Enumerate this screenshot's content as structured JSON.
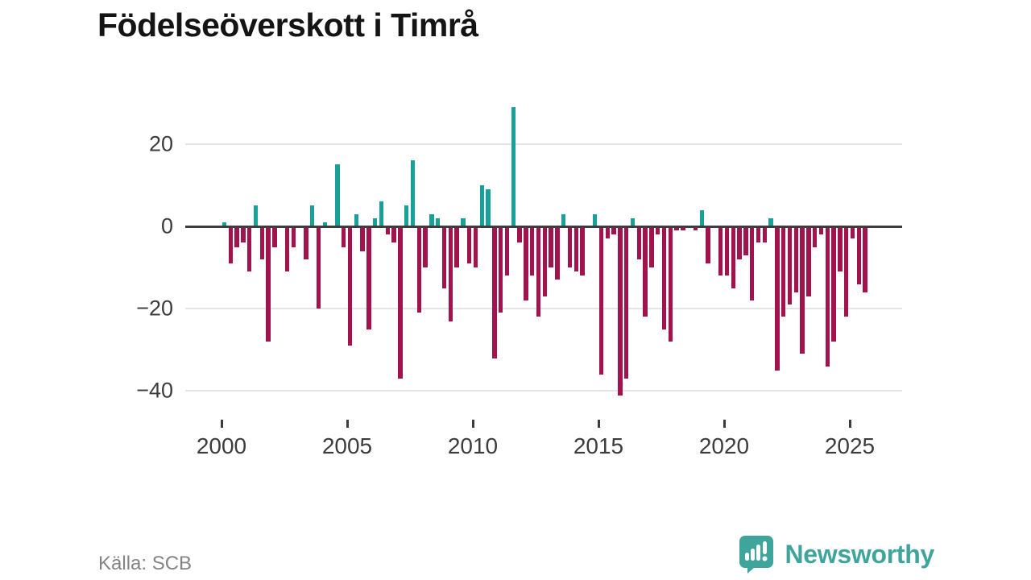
{
  "title": "Födelseöverskott i Timrå",
  "source": "Källa: SCB",
  "branding": {
    "name": "Newsworthy",
    "color": "#3fa59c",
    "icon": "newsworthy-speech-bubble-barchart-icon"
  },
  "colors": {
    "positive": "#18a19a",
    "negative": "#a2134e",
    "axis_line": "#3d3d3d",
    "grid": "#e4e4e4",
    "tick_text": "#3c3c3c",
    "muted_text": "#848484",
    "title_text": "#141414"
  },
  "chart_data": {
    "type": "bar",
    "title": "Födelseöverskott i Timrå",
    "xlabel": "",
    "ylabel": "",
    "x_start_year": 2000,
    "x_step_years": 0.25,
    "period": "quarterly",
    "values": [
      1,
      -9,
      -5,
      -4,
      -11,
      5,
      -8,
      -28,
      -5,
      0,
      -11,
      -5,
      0,
      -8,
      5,
      -20,
      1,
      0,
      15,
      -5,
      -29,
      3,
      -6,
      -25,
      2,
      6,
      -2,
      -4,
      -37,
      5,
      16,
      -21,
      -10,
      3,
      2,
      -15,
      -23,
      -10,
      2,
      -9,
      -10,
      10,
      9,
      -32,
      -21,
      -12,
      29,
      -4,
      -18,
      -12,
      -22,
      -17,
      -10,
      -13,
      3,
      -10,
      -11,
      -12,
      0,
      3,
      -36,
      -3,
      -2,
      -41,
      -37,
      2,
      -8,
      -22,
      -10,
      -2,
      -25,
      -28,
      -1,
      -1,
      0,
      -1,
      4,
      -9,
      0,
      -12,
      -12,
      -15,
      -8,
      -7,
      -18,
      -4,
      -4,
      2,
      -35,
      -22,
      -19,
      -16,
      -31,
      -17,
      -5,
      -2,
      -34,
      -28,
      -11,
      -22,
      -3,
      -14,
      -16
    ],
    "xticks": [
      2000,
      2005,
      2010,
      2015,
      2020,
      2025
    ],
    "yticks": [
      20,
      0,
      -20,
      -40
    ],
    "y_tick_labels": [
      "20",
      "0",
      "−20",
      "−40"
    ],
    "x_tick_labels": [
      "2000",
      "2005",
      "2010",
      "2015",
      "2020",
      "2025"
    ],
    "ylim": [
      -44,
      31
    ],
    "grid": true,
    "legend": "none",
    "positive_color": "#18a19a",
    "negative_color": "#a2134e"
  }
}
